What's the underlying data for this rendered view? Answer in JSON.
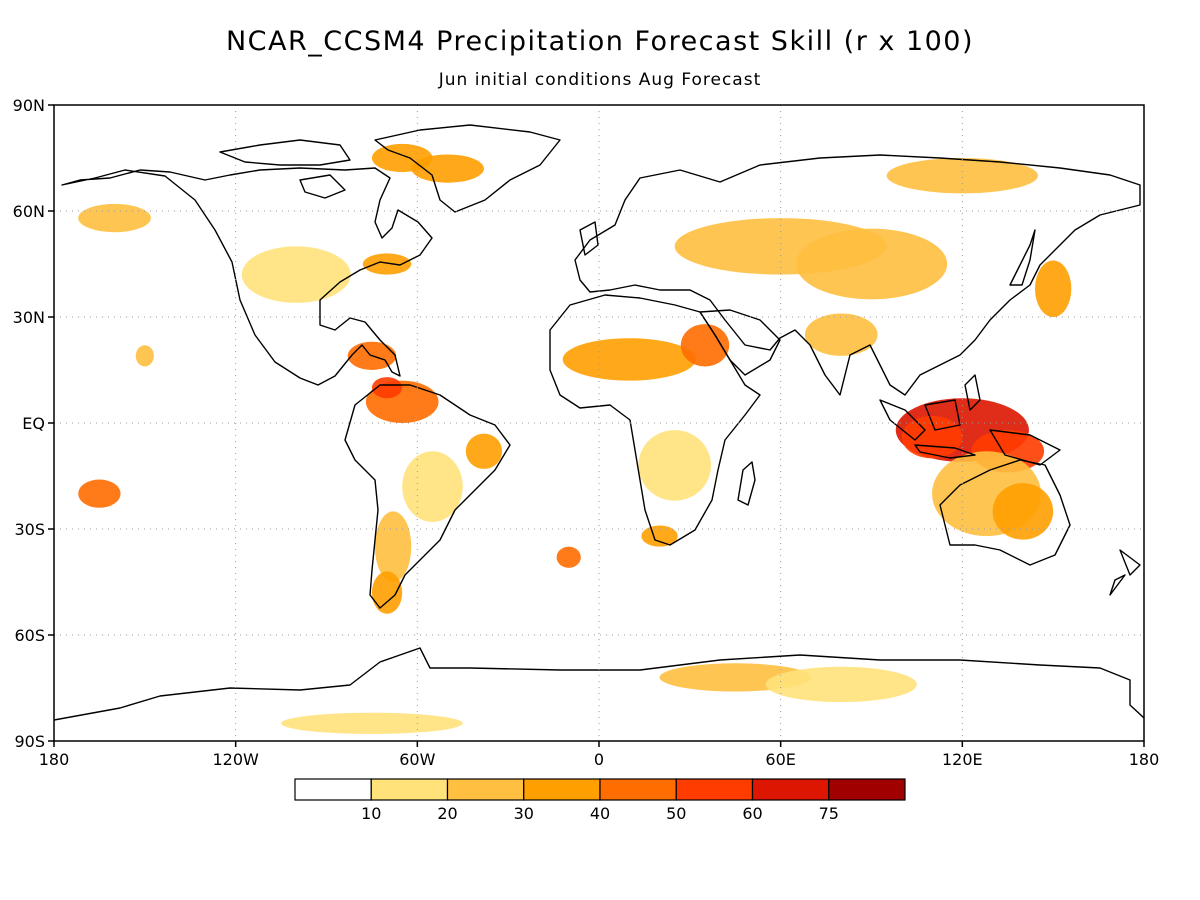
{
  "title": "NCAR_CCSM4 Precipitation Forecast Skill (r x 100)",
  "subtitle": "Jun initial conditions  Aug Forecast",
  "map": {
    "projection": "equirectangular",
    "lon_range": [
      -180,
      180
    ],
    "lat_range": [
      -90,
      90
    ],
    "grid": "dotted",
    "lat_ticks": [
      {
        "value": 90,
        "label": "90N"
      },
      {
        "value": 60,
        "label": "60N"
      },
      {
        "value": 30,
        "label": "30N"
      },
      {
        "value": 0,
        "label": "EQ"
      },
      {
        "value": -30,
        "label": "30S"
      },
      {
        "value": -60,
        "label": "60S"
      },
      {
        "value": -90,
        "label": "90S"
      }
    ],
    "lon_ticks": [
      {
        "value": -180,
        "label": "180"
      },
      {
        "value": -120,
        "label": "120W"
      },
      {
        "value": -60,
        "label": "60W"
      },
      {
        "value": 0,
        "label": "0"
      },
      {
        "value": 60,
        "label": "60E"
      },
      {
        "value": 120,
        "label": "120E"
      },
      {
        "value": 180,
        "label": "180"
      }
    ]
  },
  "colorbar": {
    "colors": [
      "#ffffff",
      "#ffe27a",
      "#ffbf40",
      "#ff9f00",
      "#ff6d00",
      "#ff3c00",
      "#dc1600",
      "#a00000"
    ],
    "labels": [
      "10",
      "20",
      "30",
      "40",
      "50",
      "60",
      "75"
    ]
  },
  "skill_regions": [
    {
      "lon": 120,
      "lat": -2,
      "rx": 22,
      "ry": 9,
      "level": 6
    },
    {
      "lon": 135,
      "lat": -8,
      "rx": 12,
      "ry": 6,
      "level": 5
    },
    {
      "lon": 110,
      "lat": -4,
      "rx": 10,
      "ry": 6,
      "level": 5
    },
    {
      "lon": 128,
      "lat": -20,
      "rx": 18,
      "ry": 12,
      "level": 2
    },
    {
      "lon": 140,
      "lat": -25,
      "rx": 10,
      "ry": 8,
      "level": 3
    },
    {
      "lon": -65,
      "lat": 6,
      "rx": 12,
      "ry": 6,
      "level": 4
    },
    {
      "lon": -70,
      "lat": 10,
      "rx": 5,
      "ry": 3,
      "level": 5
    },
    {
      "lon": -75,
      "lat": 19,
      "rx": 8,
      "ry": 4,
      "level": 4
    },
    {
      "lon": -38,
      "lat": -8,
      "rx": 6,
      "ry": 5,
      "level": 3
    },
    {
      "lon": -55,
      "lat": -18,
      "rx": 10,
      "ry": 10,
      "level": 1
    },
    {
      "lon": -68,
      "lat": -35,
      "rx": 6,
      "ry": 10,
      "level": 2
    },
    {
      "lon": -70,
      "lat": -48,
      "rx": 5,
      "ry": 6,
      "level": 3
    },
    {
      "lon": -165,
      "lat": -20,
      "rx": 7,
      "ry": 4,
      "level": 4
    },
    {
      "lon": -150,
      "lat": 19,
      "rx": 3,
      "ry": 3,
      "level": 2
    },
    {
      "lon": 10,
      "lat": 18,
      "rx": 22,
      "ry": 6,
      "level": 3
    },
    {
      "lon": 35,
      "lat": 22,
      "rx": 8,
      "ry": 6,
      "level": 4
    },
    {
      "lon": 25,
      "lat": -12,
      "rx": 12,
      "ry": 10,
      "level": 1
    },
    {
      "lon": 20,
      "lat": -32,
      "rx": 6,
      "ry": 3,
      "level": 3
    },
    {
      "lon": 60,
      "lat": 50,
      "rx": 35,
      "ry": 8,
      "level": 2
    },
    {
      "lon": 90,
      "lat": 45,
      "rx": 25,
      "ry": 10,
      "level": 2
    },
    {
      "lon": 120,
      "lat": 70,
      "rx": 25,
      "ry": 5,
      "level": 2
    },
    {
      "lon": -100,
      "lat": 42,
      "rx": 18,
      "ry": 8,
      "level": 1
    },
    {
      "lon": -70,
      "lat": 45,
      "rx": 8,
      "ry": 3,
      "level": 3
    },
    {
      "lon": -65,
      "lat": 75,
      "rx": 10,
      "ry": 4,
      "level": 3
    },
    {
      "lon": -50,
      "lat": 72,
      "rx": 12,
      "ry": 4,
      "level": 3
    },
    {
      "lon": -160,
      "lat": 58,
      "rx": 12,
      "ry": 4,
      "level": 2
    },
    {
      "lon": 80,
      "lat": 25,
      "rx": 12,
      "ry": 6,
      "level": 2
    },
    {
      "lon": 150,
      "lat": 38,
      "rx": 6,
      "ry": 8,
      "level": 3
    },
    {
      "lon": -10,
      "lat": -38,
      "rx": 4,
      "ry": 3,
      "level": 4
    },
    {
      "lon": 45,
      "lat": -72,
      "rx": 25,
      "ry": 4,
      "level": 2
    },
    {
      "lon": 80,
      "lat": -74,
      "rx": 25,
      "ry": 5,
      "level": 1
    },
    {
      "lon": -75,
      "lat": -85,
      "rx": 30,
      "ry": 3,
      "level": 1
    }
  ]
}
